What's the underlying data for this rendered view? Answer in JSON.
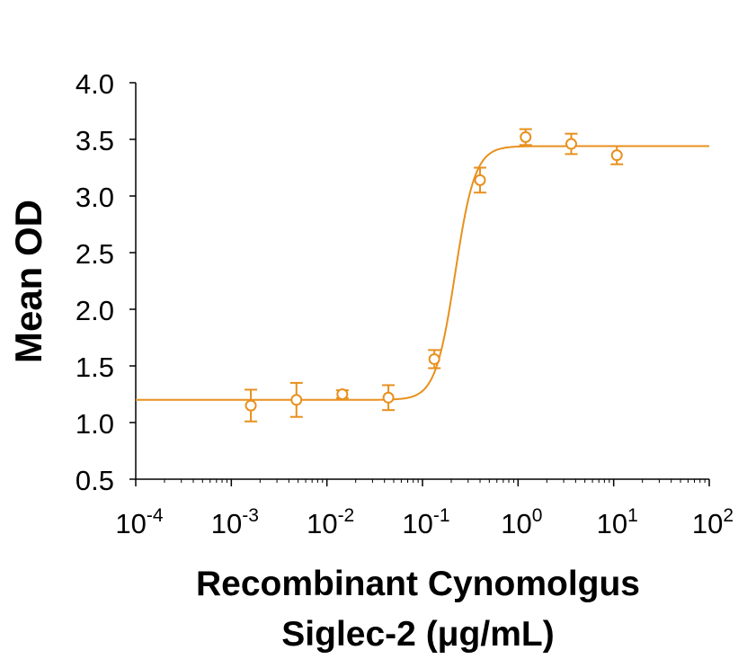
{
  "chart_data": {
    "type": "scatter",
    "xlabel_line1": "Recombinant Cynomolgus",
    "xlabel_line2": "Siglec-2 (μg/mL)",
    "ylabel": "Mean OD",
    "x_scale": "log",
    "xlim": [
      0.0001,
      100
    ],
    "ylim": [
      0.5,
      4.0
    ],
    "x_ticks": [
      {
        "value": 0.0001,
        "base": "10",
        "exp": "-4"
      },
      {
        "value": 0.001,
        "base": "10",
        "exp": "-3"
      },
      {
        "value": 0.01,
        "base": "10",
        "exp": "-2"
      },
      {
        "value": 0.1,
        "base": "10",
        "exp": "-1"
      },
      {
        "value": 1,
        "base": "10",
        "exp": "0"
      },
      {
        "value": 10,
        "base": "10",
        "exp": "1"
      },
      {
        "value": 100,
        "base": "10",
        "exp": "2"
      }
    ],
    "y_ticks": [
      {
        "value": 0.5,
        "label": "0.5"
      },
      {
        "value": 1.0,
        "label": "1.0"
      },
      {
        "value": 1.5,
        "label": "1.5"
      },
      {
        "value": 2.0,
        "label": "2.0"
      },
      {
        "value": 2.5,
        "label": "2.5"
      },
      {
        "value": 3.0,
        "label": "3.0"
      },
      {
        "value": 3.5,
        "label": "3.5"
      },
      {
        "value": 4.0,
        "label": "4.0"
      }
    ],
    "color": "#E8901E",
    "series": [
      {
        "points": [
          {
            "x": 0.0016,
            "y": 1.15,
            "err": 0.14
          },
          {
            "x": 0.0048,
            "y": 1.2,
            "err": 0.15
          },
          {
            "x": 0.0145,
            "y": 1.25,
            "err": 0.035
          },
          {
            "x": 0.044,
            "y": 1.22,
            "err": 0.11
          },
          {
            "x": 0.133,
            "y": 1.56,
            "err": 0.08
          },
          {
            "x": 0.4,
            "y": 3.14,
            "err": 0.11
          },
          {
            "x": 1.2,
            "y": 3.52,
            "err": 0.07
          },
          {
            "x": 3.6,
            "y": 3.46,
            "err": 0.09
          },
          {
            "x": 10.8,
            "y": 3.36,
            "err": 0.08
          }
        ],
        "fit": {
          "model": "4PL",
          "bottom": 1.2,
          "top": 3.44,
          "ec50": 0.22,
          "hill": 4.2
        }
      }
    ]
  }
}
